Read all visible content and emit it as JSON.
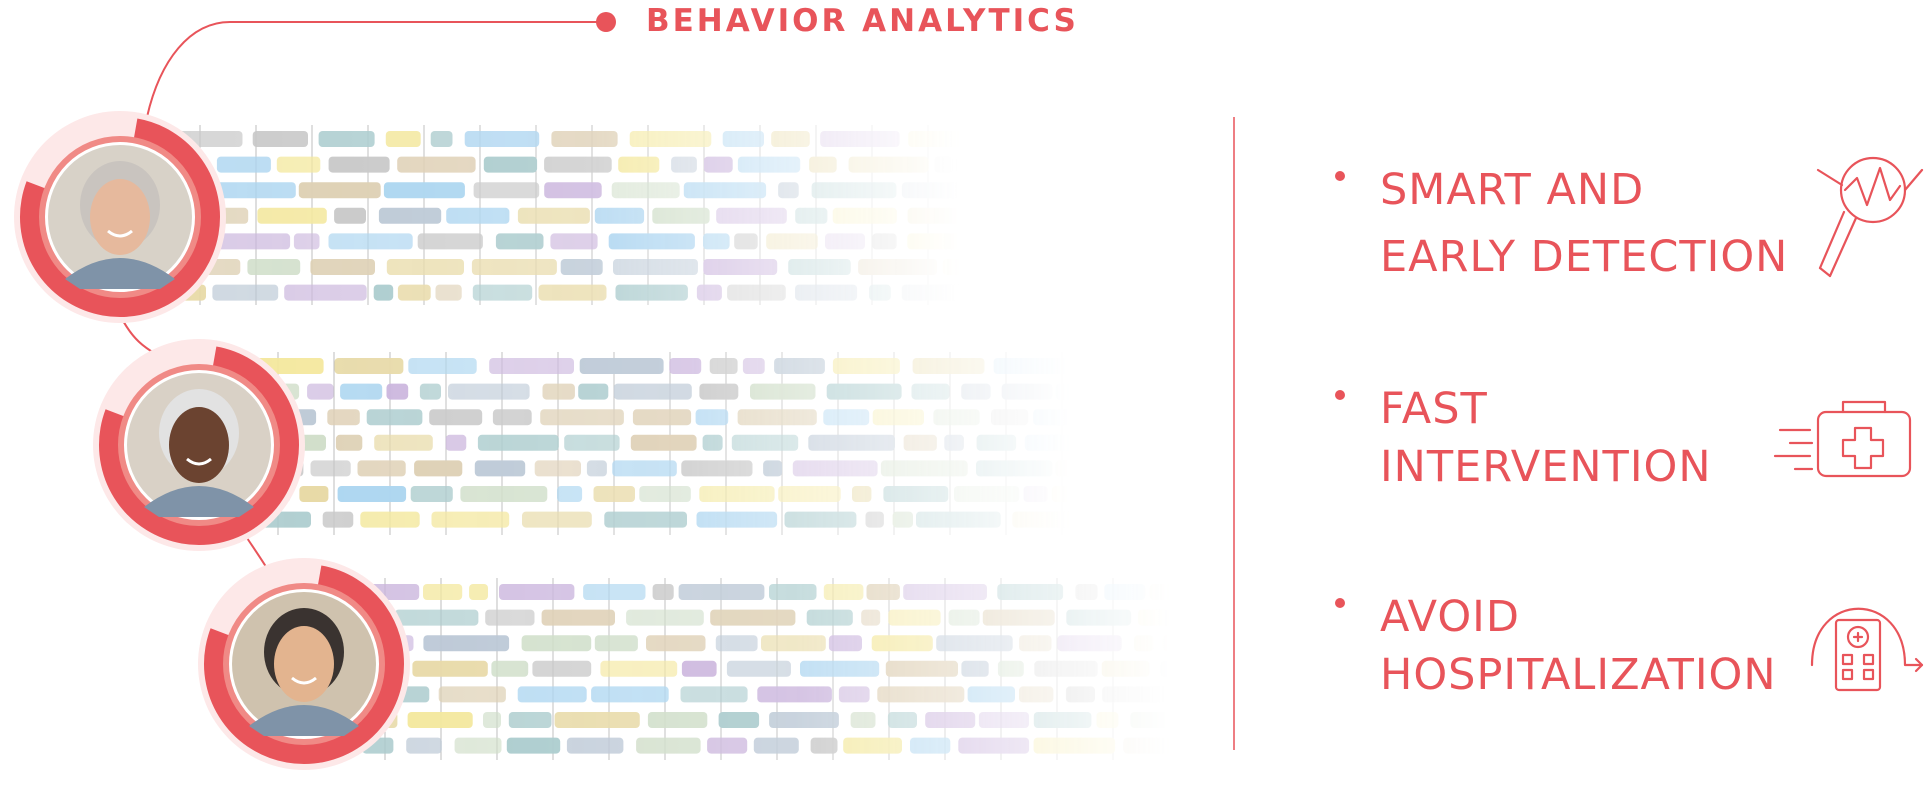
{
  "header": {
    "title": "BEHAVIOR ANALYTICS"
  },
  "items": [
    {
      "lines": [
        "SMART AND",
        "EARLY DETECTION"
      ]
    },
    {
      "lines": [
        "FAST",
        "INTERVENTION"
      ]
    },
    {
      "lines": [
        "AVOID",
        "HOSPITALIZATION"
      ]
    }
  ]
}
